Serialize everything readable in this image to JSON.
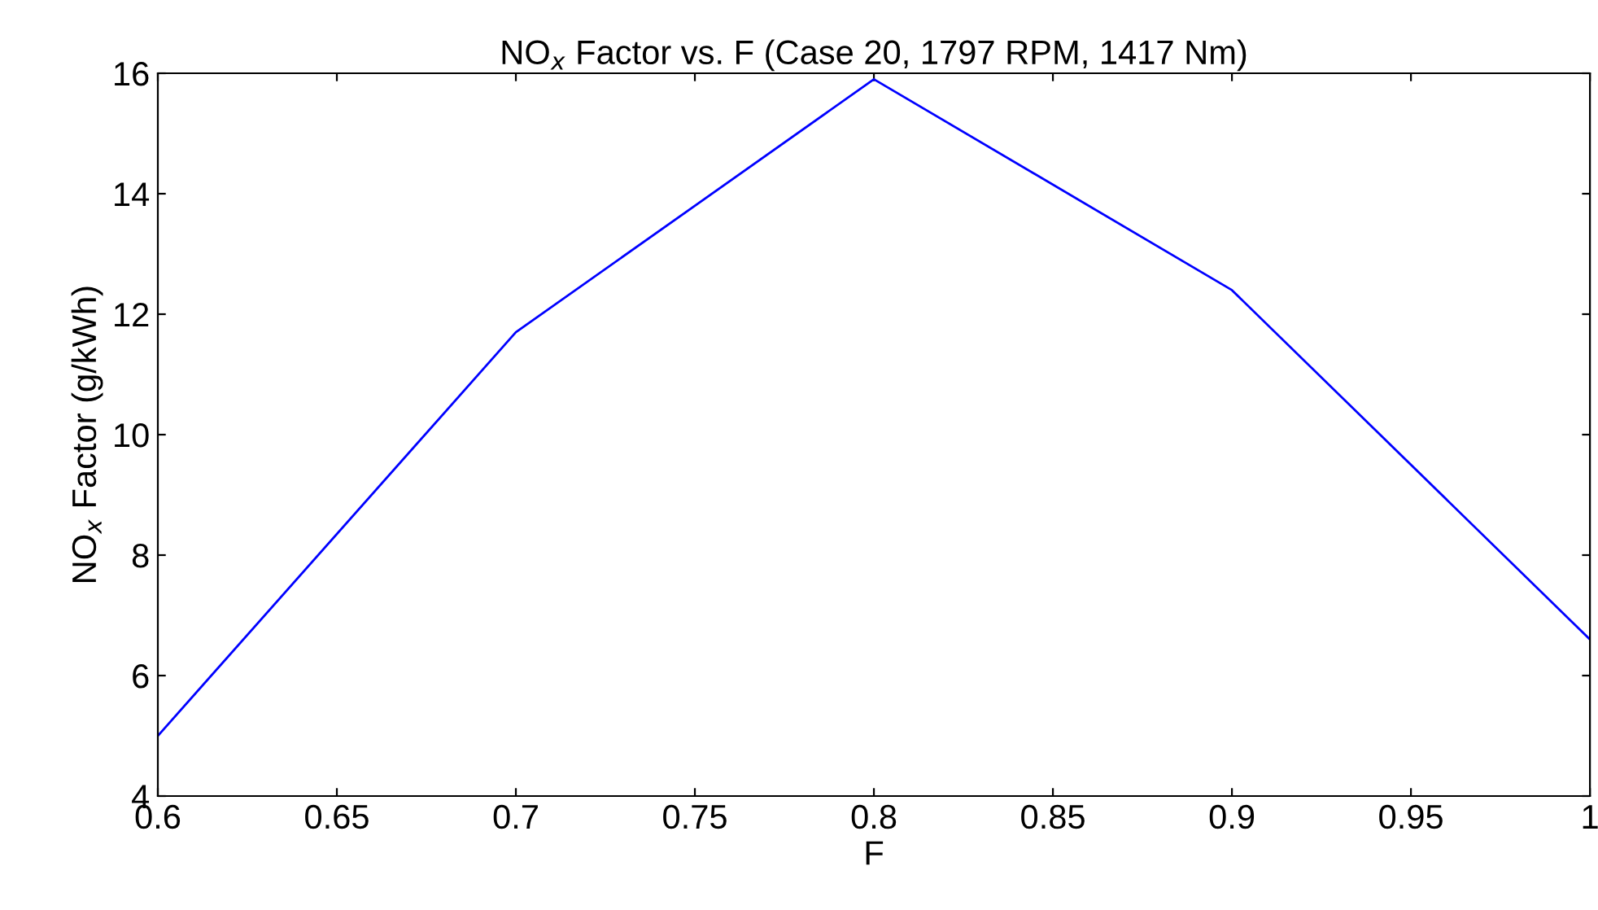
{
  "chart_data": {
    "type": "line",
    "title": "NO$_{x}$ Factor vs. F (Case 20, 1797 RPM, 1417 Nm)",
    "xlabel": "F",
    "ylabel": "NO$_{x}$ Factor (g/kWh)",
    "x": [
      0.6,
      0.7,
      0.8,
      0.9,
      1.0
    ],
    "series": [
      {
        "color": "#0000ff",
        "values": [
          5.0,
          11.7,
          15.9,
          12.4,
          6.6
        ]
      }
    ],
    "xlim": [
      0.6,
      1.0
    ],
    "xticks": [
      0.6,
      0.65,
      0.7,
      0.75,
      0.8,
      0.85,
      0.9,
      0.95,
      1
    ],
    "ylim": [
      4,
      16
    ],
    "yticks": [
      4,
      6,
      8,
      10,
      12,
      14,
      16
    ],
    "grid": false,
    "legend": false,
    "marker": "none",
    "line_style": "solid"
  }
}
